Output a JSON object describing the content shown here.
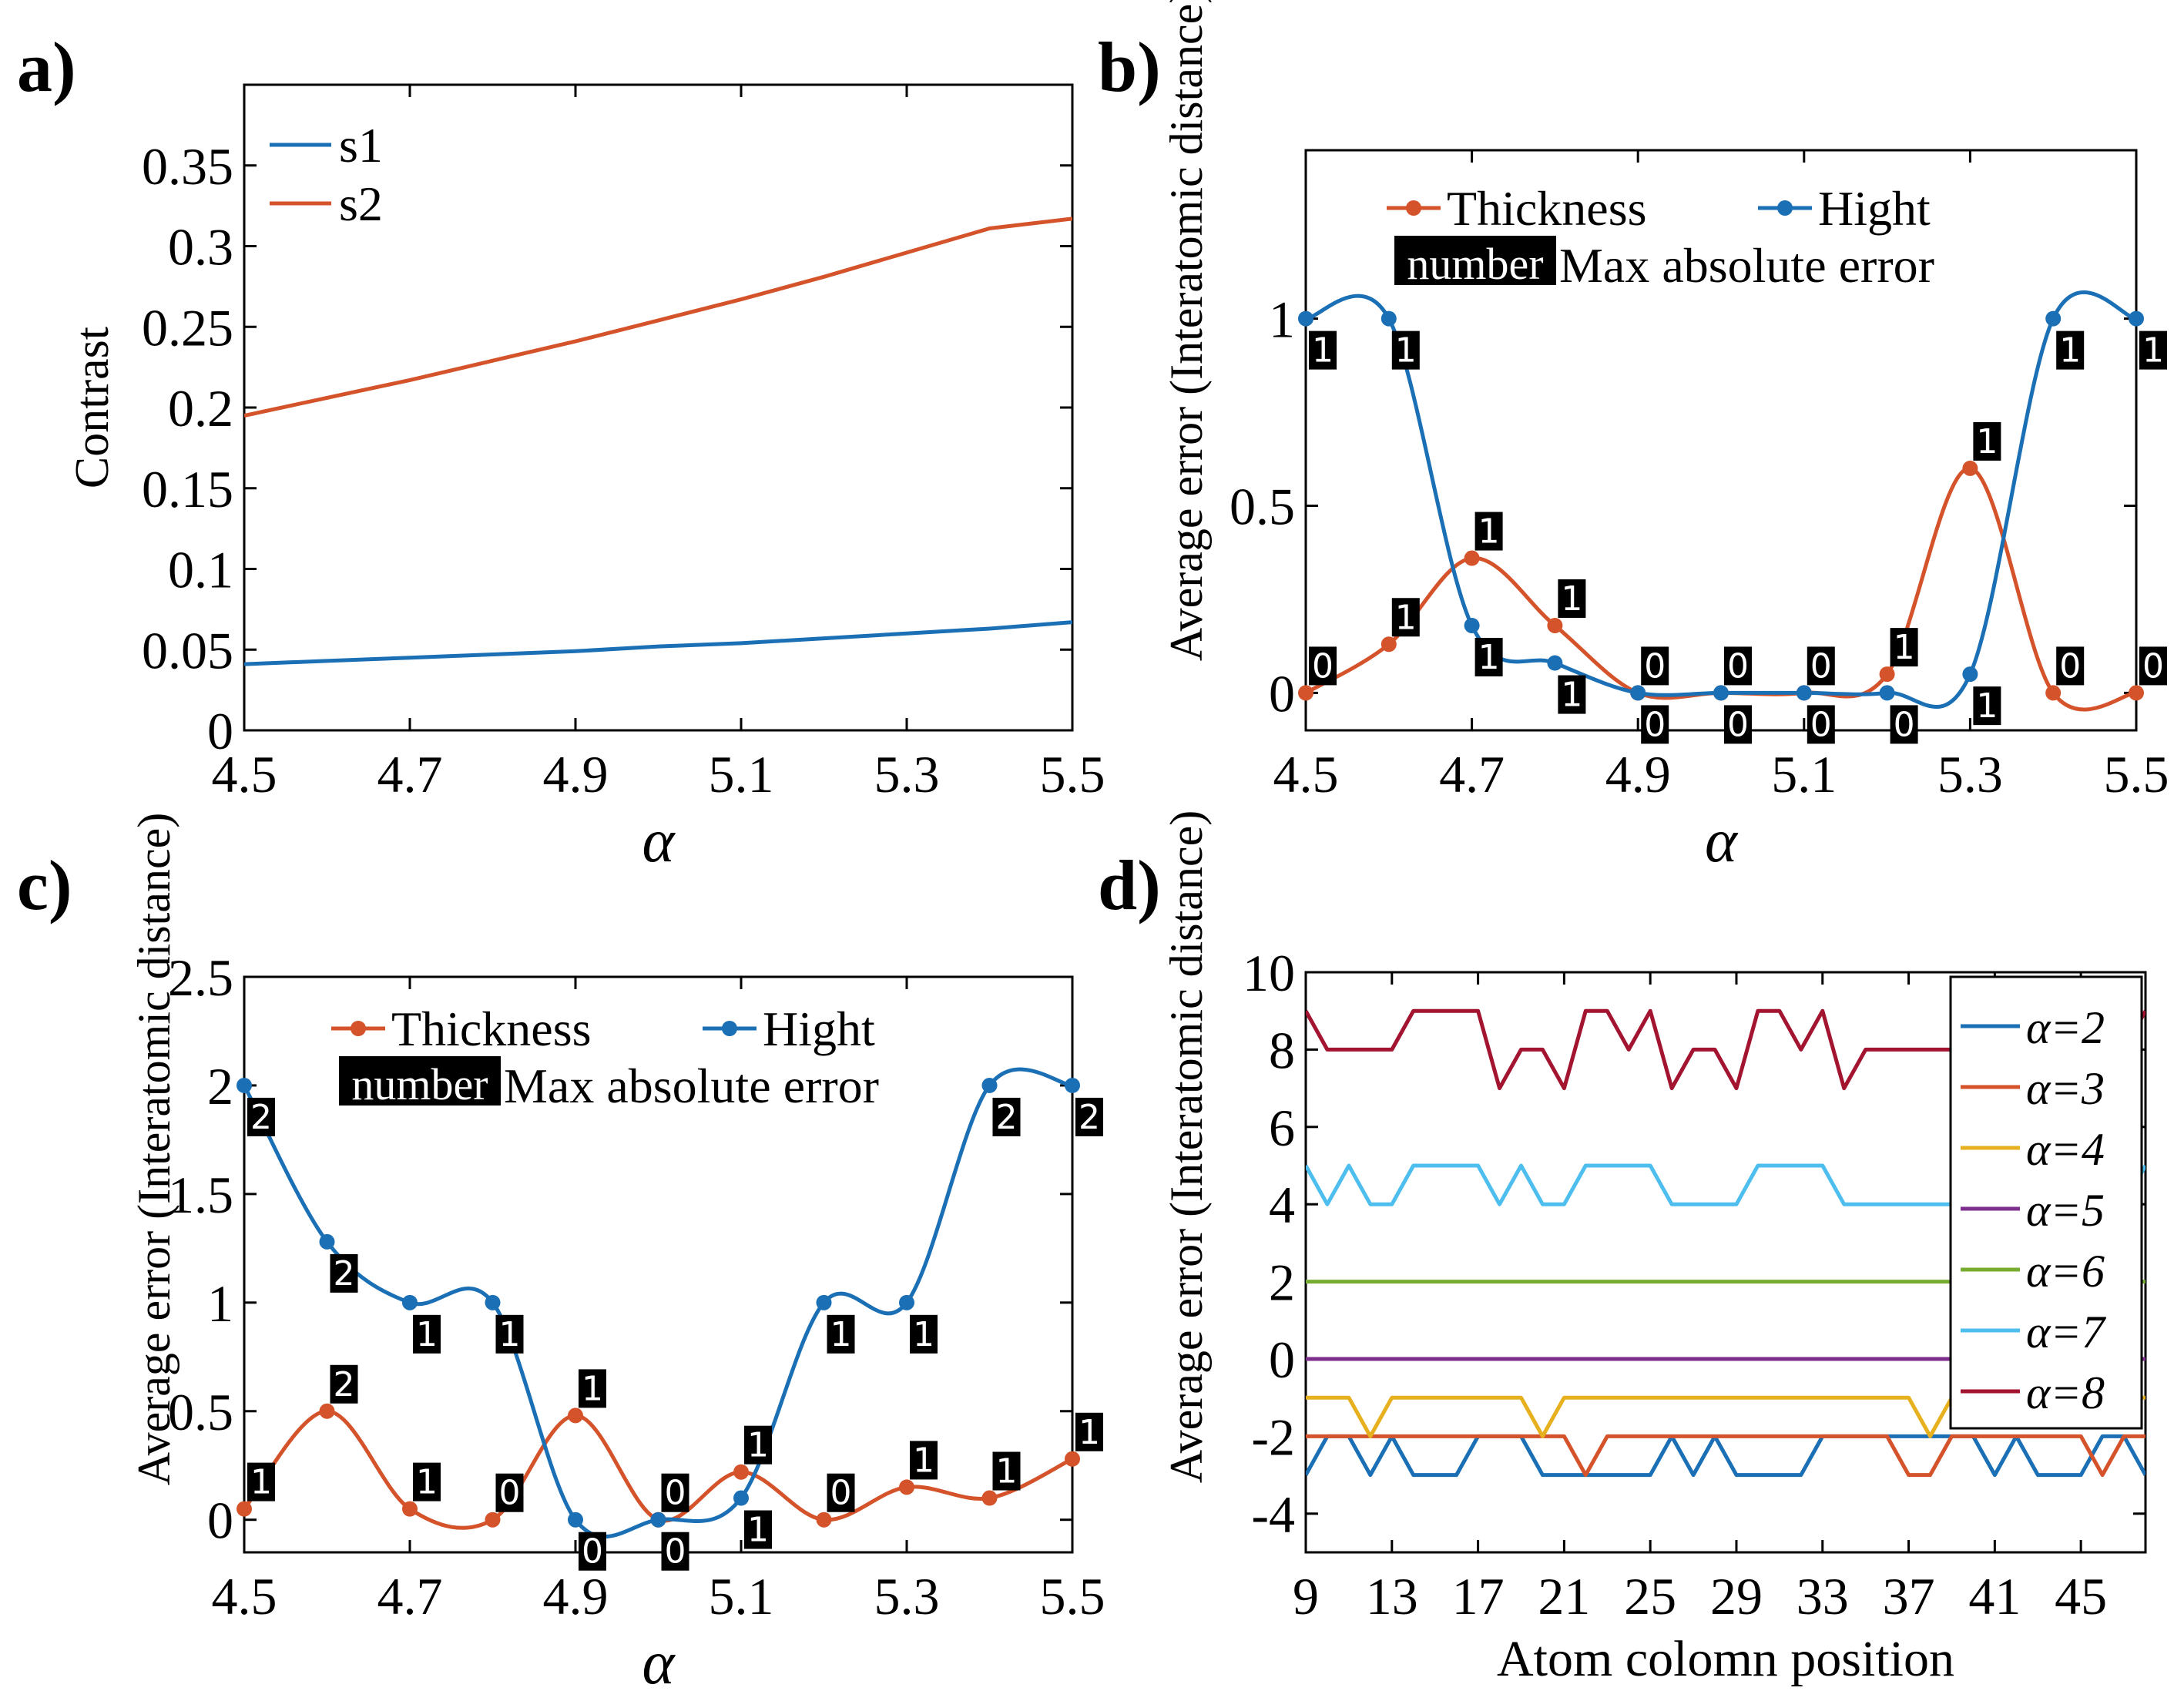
{
  "colors": {
    "blue": "#1a6fb5",
    "orange": "#d4532a",
    "yellow": "#e6b01e",
    "purple": "#7e2f8e",
    "green": "#77ac30",
    "cyan": "#4dbeee",
    "darkred": "#a2142f",
    "label_bg": "#000000",
    "label_fg": "#ffffff"
  },
  "chart_data": [
    {
      "panel": "a)",
      "type": "line",
      "ylabel": "Contrast",
      "xlabel": "α",
      "xlim": [
        4.5,
        5.5
      ],
      "ylim": [
        0,
        0.4
      ],
      "xticks": [
        4.5,
        4.7,
        4.9,
        5.1,
        5.3,
        5.5
      ],
      "xtick_labels": [
        "4.5",
        "4.7",
        "4.9",
        "5.1",
        "5.3",
        "5.5"
      ],
      "yticks": [
        0,
        0.05,
        0.1,
        0.15,
        0.2,
        0.25,
        0.3,
        0.35
      ],
      "ytick_labels": [
        "0",
        "0.05",
        "0.1",
        "0.15",
        "0.2",
        "0.25",
        "0.3",
        "0.35"
      ],
      "legend": "top-left",
      "x": [
        4.5,
        4.6,
        4.7,
        4.8,
        4.9,
        5.0,
        5.1,
        5.2,
        5.3,
        5.4,
        5.5
      ],
      "series": [
        {
          "name": "s1",
          "color": "#1a6fb5",
          "values": [
            0.041,
            0.043,
            0.045,
            0.047,
            0.049,
            0.052,
            0.054,
            0.057,
            0.06,
            0.063,
            0.067
          ]
        },
        {
          "name": "s2",
          "color": "#d4532a",
          "values": [
            0.195,
            0.206,
            0.217,
            0.229,
            0.241,
            0.254,
            0.267,
            0.281,
            0.296,
            0.311,
            0.317
          ]
        }
      ]
    },
    {
      "panel": "b)",
      "type": "line",
      "ylabel": "Average error (Interatomic distance)",
      "xlabel": "α",
      "xlim": [
        4.5,
        5.5
      ],
      "ylim": [
        -0.1,
        1.45
      ],
      "xticks": [
        4.5,
        4.7,
        4.9,
        5.1,
        5.3,
        5.5
      ],
      "xtick_labels": [
        "4.5",
        "4.7",
        "4.9",
        "5.1",
        "5.3",
        "5.5"
      ],
      "yticks": [
        0,
        0.5,
        1
      ],
      "ytick_labels": [
        "0",
        "0.5",
        "1"
      ],
      "legend": "top-center",
      "legend_note_box": "number",
      "legend_note_text": "Max absolute error",
      "x": [
        4.5,
        4.6,
        4.7,
        4.8,
        4.9,
        5.0,
        5.1,
        5.2,
        5.3,
        5.4,
        5.5
      ],
      "series": [
        {
          "name": "Thickness",
          "color": "#d4532a",
          "values": [
            0,
            0.13,
            0.36,
            0.18,
            0,
            0,
            0,
            0.05,
            0.6,
            0,
            0
          ],
          "max_abs_error": [
            "0",
            "1",
            "1",
            "1",
            "0",
            "0",
            "0",
            "1",
            "1",
            "0",
            "0"
          ]
        },
        {
          "name": "Hight",
          "color": "#1a6fb5",
          "values": [
            1,
            1,
            0.18,
            0.08,
            0,
            0,
            0,
            0,
            0.05,
            1,
            1
          ],
          "max_abs_error": [
            "1",
            "1",
            "1",
            "1",
            "0",
            "0",
            "0",
            "0",
            "1",
            "1",
            "1"
          ]
        }
      ]
    },
    {
      "panel": "c)",
      "type": "line",
      "ylabel": "Average error (Interatomic distance)",
      "xlabel": "α",
      "xlim": [
        4.5,
        5.5
      ],
      "ylim": [
        -0.15,
        2.5
      ],
      "xticks": [
        4.5,
        4.7,
        4.9,
        5.1,
        5.3,
        5.5
      ],
      "xtick_labels": [
        "4.5",
        "4.7",
        "4.9",
        "5.1",
        "5.3",
        "5.5"
      ],
      "yticks": [
        0,
        0.5,
        1,
        1.5,
        2,
        2.5
      ],
      "ytick_labels": [
        "0",
        "0.5",
        "1",
        "1.5",
        "2",
        "2.5"
      ],
      "legend": "top-center",
      "legend_note_box": "number",
      "legend_note_text": "Max absolute error",
      "x": [
        4.5,
        4.6,
        4.7,
        4.8,
        4.9,
        5.0,
        5.1,
        5.2,
        5.3,
        5.4,
        5.5
      ],
      "series": [
        {
          "name": "Thickness",
          "color": "#d4532a",
          "values": [
            0.05,
            0.5,
            0.05,
            0,
            0.48,
            0,
            0.22,
            0,
            0.15,
            0.1,
            0.28
          ],
          "max_abs_error": [
            "1",
            "2",
            "1",
            "0",
            "1",
            "0",
            "1",
            "0",
            "1",
            "1",
            "1"
          ]
        },
        {
          "name": "Hight",
          "color": "#1a6fb5",
          "values": [
            2,
            1.28,
            1,
            1,
            0,
            0,
            0.1,
            1,
            1,
            2,
            2
          ],
          "max_abs_error": [
            "2",
            "2",
            "1",
            "1",
            "0",
            "0",
            "1",
            "1",
            "1",
            "2",
            "2"
          ]
        }
      ]
    },
    {
      "panel": "d)",
      "type": "line",
      "ylabel": "Average error (Interatomic distance)",
      "xlabel": "Atom colomn position",
      "xlim": [
        9,
        48
      ],
      "ylim": [
        -5,
        10
      ],
      "xticks": [
        9,
        13,
        17,
        21,
        25,
        29,
        33,
        37,
        41,
        45
      ],
      "xtick_labels": [
        "9",
        "13",
        "17",
        "21",
        "25",
        "29",
        "33",
        "37",
        "41",
        "45"
      ],
      "yticks": [
        -4,
        -2,
        0,
        2,
        4,
        6,
        8,
        10
      ],
      "ytick_labels": [
        "-4",
        "-2",
        "0",
        "2",
        "4",
        "6",
        "8",
        "10"
      ],
      "legend": "top-right",
      "x": [
        9,
        10,
        11,
        12,
        13,
        14,
        15,
        16,
        17,
        18,
        19,
        20,
        21,
        22,
        23,
        24,
        25,
        26,
        27,
        28,
        29,
        30,
        31,
        32,
        33,
        34,
        35,
        36,
        37,
        38,
        39,
        40,
        41,
        42,
        43,
        44,
        45,
        46,
        47,
        48
      ],
      "series": [
        {
          "name": "α=2",
          "color": "#1a6fb5",
          "values": [
            -3,
            -2,
            -2,
            -3,
            -2,
            -3,
            -3,
            -3,
            -2,
            -2,
            -2,
            -3,
            -3,
            -3,
            -3,
            -3,
            -3,
            -2,
            -3,
            -2,
            -3,
            -3,
            -3,
            -3,
            -2,
            -2,
            -2,
            -2,
            -2,
            -2,
            -2,
            -2,
            -3,
            -2,
            -3,
            -3,
            -3,
            -2,
            -2,
            -3
          ]
        },
        {
          "name": "α=3",
          "color": "#d4532a",
          "values": [
            -2,
            -2,
            -2,
            -2,
            -2,
            -2,
            -2,
            -2,
            -2,
            -2,
            -2,
            -2,
            -2,
            -3,
            -2,
            -2,
            -2,
            -2,
            -2,
            -2,
            -2,
            -2,
            -2,
            -2,
            -2,
            -2,
            -2,
            -2,
            -3,
            -3,
            -2,
            -2,
            -2,
            -2,
            -2,
            -2,
            -2,
            -3,
            -2,
            -2
          ]
        },
        {
          "name": "α=4",
          "color": "#e6b01e",
          "values": [
            -1,
            -1,
            -1,
            -2,
            -1,
            -1,
            -1,
            -1,
            -1,
            -1,
            -1,
            -2,
            -1,
            -1,
            -1,
            -1,
            -1,
            -1,
            -1,
            -1,
            -1,
            -1,
            -1,
            -1,
            -1,
            -1,
            -1,
            -1,
            -1,
            -2,
            -1,
            -1,
            -1,
            -1,
            -1,
            -1,
            -1,
            -1,
            -1,
            -1
          ]
        },
        {
          "name": "α=5",
          "color": "#7e2f8e",
          "values": [
            0,
            0,
            0,
            0,
            0,
            0,
            0,
            0,
            0,
            0,
            0,
            0,
            0,
            0,
            0,
            0,
            0,
            0,
            0,
            0,
            0,
            0,
            0,
            0,
            0,
            0,
            0,
            0,
            0,
            0,
            0,
            0,
            0,
            0,
            0,
            0,
            0,
            0,
            0,
            0
          ]
        },
        {
          "name": "α=6",
          "color": "#77ac30",
          "values": [
            2,
            2,
            2,
            2,
            2,
            2,
            2,
            2,
            2,
            2,
            2,
            2,
            2,
            2,
            2,
            2,
            2,
            2,
            2,
            2,
            2,
            2,
            2,
            2,
            2,
            2,
            2,
            2,
            2,
            2,
            2,
            2,
            2,
            2,
            2,
            2,
            2,
            2,
            2,
            2
          ]
        },
        {
          "name": "α=7",
          "color": "#4dbeee",
          "values": [
            5,
            4,
            5,
            4,
            4,
            5,
            5,
            5,
            5,
            4,
            5,
            4,
            4,
            5,
            5,
            5,
            5,
            4,
            4,
            4,
            4,
            5,
            5,
            5,
            5,
            4,
            4,
            4,
            4,
            4,
            4,
            4,
            4,
            4,
            4,
            4,
            4,
            4,
            4,
            5
          ]
        },
        {
          "name": "α=8",
          "color": "#a2142f",
          "values": [
            9,
            8,
            8,
            8,
            8,
            9,
            9,
            9,
            9,
            7,
            8,
            8,
            7,
            9,
            9,
            8,
            9,
            7,
            8,
            8,
            7,
            9,
            9,
            8,
            9,
            7,
            8,
            8,
            8,
            8,
            8,
            8,
            8,
            8,
            8,
            8,
            8,
            8,
            8,
            9
          ]
        }
      ]
    }
  ]
}
